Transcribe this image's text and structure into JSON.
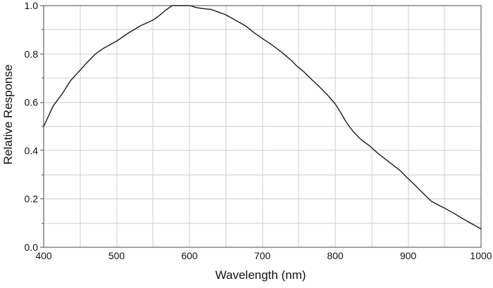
{
  "page": {
    "background": "#ffffff"
  },
  "chart_data": {
    "type": "line",
    "title": "",
    "xlabel": "Wavelength (nm)",
    "ylabel": "Relative Response",
    "xlim": [
      400,
      1000
    ],
    "ylim": [
      0.0,
      1.0
    ],
    "x_major_ticks": [
      400,
      500,
      600,
      700,
      800,
      900,
      1000
    ],
    "x_tick_labels": [
      "400",
      "500",
      "600",
      "700",
      "800",
      "900",
      "1000"
    ],
    "x_minor_step": 50,
    "y_major_ticks": [
      0.0,
      0.2,
      0.4,
      0.6,
      0.8,
      1.0
    ],
    "y_tick_labels": [
      "0.0",
      "0.2",
      "0.4",
      "0.6",
      "0.8",
      "1.0"
    ],
    "y_minor_step": 0.1,
    "grid": true,
    "grid_minor": true,
    "legend": "none",
    "colors": {
      "curve": "#1a1a1a",
      "grid": "#cccccc",
      "frame": "#4a4a4a",
      "tick_text": "#111111"
    },
    "series": [
      {
        "name": "relative-response",
        "x": [
          400,
          408,
          413,
          425,
          437,
          450,
          460,
          471,
          483,
          500,
          517,
          533,
          550,
          557,
          567,
          576,
          590,
          601,
          608,
          617,
          630,
          640,
          650,
          663,
          677,
          690,
          700,
          712,
          727,
          740,
          748,
          757,
          764,
          778,
          790,
          800,
          807,
          814,
          820,
          826,
          836,
          847,
          858,
          875,
          888,
          898,
          910,
          921,
          932,
          943,
          950,
          963,
          975,
          988,
          1000
        ],
        "y": [
          0.5,
          0.552,
          0.585,
          0.633,
          0.69,
          0.733,
          0.766,
          0.8,
          0.825,
          0.853,
          0.888,
          0.917,
          0.94,
          0.955,
          0.98,
          1.0,
          1.0,
          1.0,
          0.993,
          0.988,
          0.984,
          0.973,
          0.962,
          0.94,
          0.916,
          0.885,
          0.864,
          0.84,
          0.806,
          0.772,
          0.748,
          0.726,
          0.705,
          0.665,
          0.628,
          0.593,
          0.56,
          0.523,
          0.497,
          0.474,
          0.444,
          0.42,
          0.39,
          0.35,
          0.32,
          0.29,
          0.255,
          0.222,
          0.19,
          0.172,
          0.162,
          0.14,
          0.118,
          0.096,
          0.076
        ]
      }
    ]
  }
}
